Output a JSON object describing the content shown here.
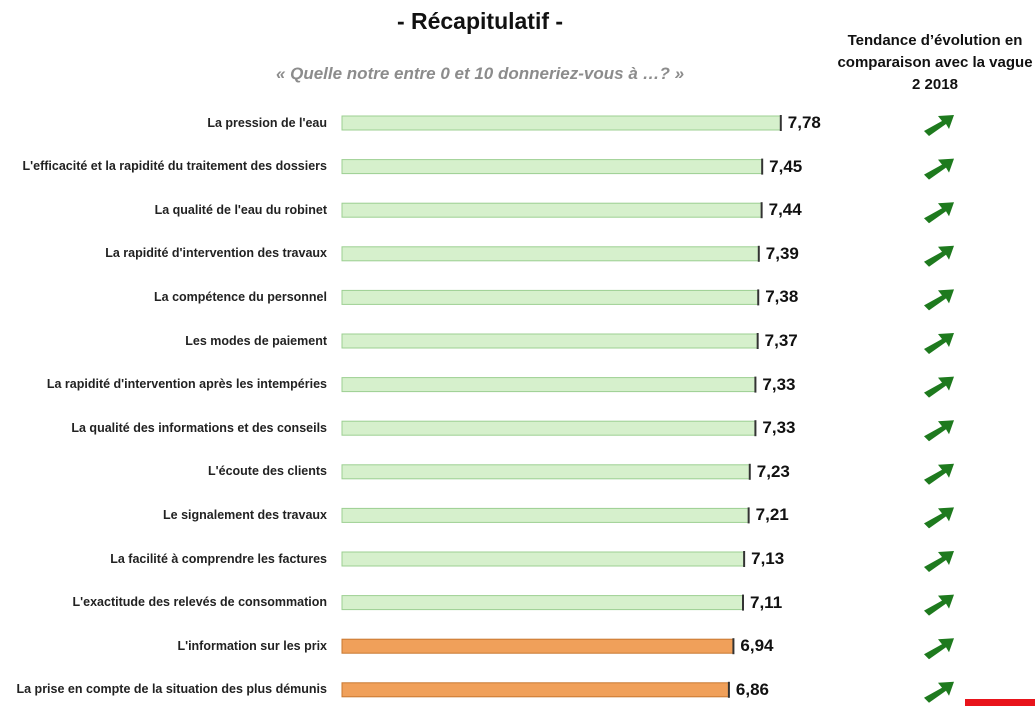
{
  "chart_data": {
    "type": "bar",
    "orientation": "horizontal",
    "title": "- Récapitulatif -",
    "subtitle": "« Quelle notre entre 0 et 10 donneriez-vous à …? »",
    "annotation": "Tendance d’évolution en comparaison avec la vague 2 2018",
    "categories": [
      "La pression de l'eau",
      "L'efficacité et la rapidité du traitement des dossiers",
      "La qualité de l'eau du robinet",
      "La rapidité d'intervention des travaux",
      "La compétence du personnel",
      "Les modes de paiement",
      "La rapidité d'intervention après les intempéries",
      "La qualité des informations et des conseils",
      "L'écoute des clients",
      "Le signalement des travaux",
      "La facilité à comprendre les factures",
      "L'exactitude des relevés de consommation",
      "L'information sur les prix",
      "La prise en compte de la situation des plus démunis"
    ],
    "values": [
      7.78,
      7.45,
      7.44,
      7.39,
      7.38,
      7.37,
      7.33,
      7.33,
      7.23,
      7.21,
      7.13,
      7.11,
      6.94,
      6.86
    ],
    "value_labels": [
      "7,78",
      "7,45",
      "7,44",
      "7,39",
      "7,38",
      "7,37",
      "7,33",
      "7,33",
      "7,23",
      "7,21",
      "7,13",
      "7,11",
      "6,94",
      "6,86"
    ],
    "colors": [
      "#d6f0cc",
      "#d6f0cc",
      "#d6f0cc",
      "#d6f0cc",
      "#d6f0cc",
      "#d6f0cc",
      "#d6f0cc",
      "#d6f0cc",
      "#d6f0cc",
      "#d6f0cc",
      "#d6f0cc",
      "#d6f0cc",
      "#f0a05a",
      "#f0a05a"
    ]
  }
}
